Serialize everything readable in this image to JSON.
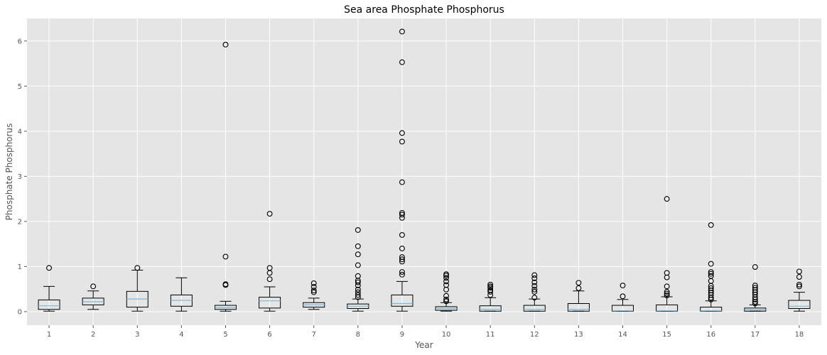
{
  "chart_data": {
    "type": "box",
    "title": "Sea area Phosphate Phosphorus",
    "xlabel": "Year",
    "ylabel": "Phosphate Phosphorus",
    "ylim": [
      -0.3,
      6.5
    ],
    "yticks": [
      0,
      1,
      2,
      3,
      4,
      5,
      6
    ],
    "grid": true,
    "background_color": "#E5E5E5",
    "grid_color": "#FFFFFF",
    "box_edge_color": "#000000",
    "median_color": "#7AB8D8",
    "categories": [
      "1",
      "2",
      "3",
      "4",
      "5",
      "6",
      "7",
      "8",
      "9",
      "10",
      "11",
      "12",
      "13",
      "14",
      "15",
      "16",
      "17",
      "18"
    ],
    "boxes": [
      {
        "category": "1",
        "whislo": 0.01,
        "q1": 0.05,
        "median": 0.13,
        "q3": 0.26,
        "whishi": 0.56,
        "fliers": [
          0.97
        ]
      },
      {
        "category": "2",
        "whislo": 0.05,
        "q1": 0.15,
        "median": 0.22,
        "q3": 0.3,
        "whishi": 0.46,
        "fliers": [
          0.56
        ]
      },
      {
        "category": "3",
        "whislo": 0.01,
        "q1": 0.1,
        "median": 0.28,
        "q3": 0.45,
        "whishi": 0.92,
        "fliers": [
          0.97
        ]
      },
      {
        "category": "4",
        "whislo": 0.01,
        "q1": 0.12,
        "median": 0.25,
        "q3": 0.37,
        "whishi": 0.75,
        "fliers": []
      },
      {
        "category": "5",
        "whislo": 0.01,
        "q1": 0.05,
        "median": 0.09,
        "q3": 0.14,
        "whishi": 0.23,
        "fliers": [
          0.59,
          0.61,
          1.22,
          5.92
        ]
      },
      {
        "category": "6",
        "whislo": 0.01,
        "q1": 0.08,
        "median": 0.24,
        "q3": 0.32,
        "whishi": 0.55,
        "fliers": [
          0.72,
          0.86,
          0.97,
          2.17
        ]
      },
      {
        "category": "7",
        "whislo": 0.05,
        "q1": 0.1,
        "median": 0.15,
        "q3": 0.2,
        "whishi": 0.3,
        "fliers": [
          0.43,
          0.47,
          0.55,
          0.63
        ]
      },
      {
        "category": "8",
        "whislo": 0.01,
        "q1": 0.07,
        "median": 0.12,
        "q3": 0.17,
        "whishi": 0.28,
        "fliers": [
          0.32,
          0.37,
          0.43,
          0.49,
          0.58,
          0.65,
          0.69,
          0.79,
          1.03,
          1.27,
          1.45,
          1.81
        ]
      },
      {
        "category": "9",
        "whislo": 0.01,
        "q1": 0.12,
        "median": 0.18,
        "q3": 0.37,
        "whishi": 0.67,
        "fliers": [
          0.82,
          0.88,
          1.11,
          1.16,
          1.21,
          1.4,
          1.7,
          2.08,
          2.15,
          2.19,
          2.87,
          3.77,
          3.96,
          5.53,
          6.21
        ]
      },
      {
        "category": "10",
        "whislo": 0.01,
        "q1": 0.03,
        "median": 0.07,
        "q3": 0.11,
        "whishi": 0.2,
        "fliers": [
          0.23,
          0.27,
          0.35,
          0.49,
          0.59,
          0.67,
          0.75,
          0.8,
          0.83
        ]
      },
      {
        "category": "11",
        "whislo": 0.01,
        "q1": 0.01,
        "median": 0.05,
        "q3": 0.13,
        "whishi": 0.31,
        "fliers": [
          0.37,
          0.44,
          0.48,
          0.53,
          0.56,
          0.6
        ]
      },
      {
        "category": "12",
        "whislo": 0.01,
        "q1": 0.01,
        "median": 0.05,
        "q3": 0.14,
        "whishi": 0.28,
        "fliers": [
          0.31,
          0.44,
          0.49,
          0.57,
          0.65,
          0.74,
          0.81
        ]
      },
      {
        "category": "13",
        "whislo": 0.01,
        "q1": 0.01,
        "median": 0.05,
        "q3": 0.18,
        "whishi": 0.46,
        "fliers": [
          0.52,
          0.64
        ]
      },
      {
        "category": "14",
        "whislo": 0.01,
        "q1": 0.01,
        "median": 0.02,
        "q3": 0.14,
        "whishi": 0.27,
        "fliers": [
          0.34,
          0.58
        ]
      },
      {
        "category": "15",
        "whislo": 0.01,
        "q1": 0.01,
        "median": 0.02,
        "q3": 0.15,
        "whishi": 0.33,
        "fliers": [
          0.36,
          0.4,
          0.44,
          0.56,
          0.76,
          0.86,
          2.5
        ]
      },
      {
        "category": "16",
        "whislo": 0.01,
        "q1": 0.01,
        "median": 0.02,
        "q3": 0.1,
        "whishi": 0.24,
        "fliers": [
          0.27,
          0.31,
          0.37,
          0.42,
          0.47,
          0.52,
          0.57,
          0.68,
          0.79,
          0.84,
          0.88,
          1.06,
          1.92
        ]
      },
      {
        "category": "17",
        "whislo": 0.01,
        "q1": 0.01,
        "median": 0.04,
        "q3": 0.08,
        "whishi": 0.15,
        "fliers": [
          0.18,
          0.22,
          0.27,
          0.32,
          0.38,
          0.43,
          0.48,
          0.53,
          0.58,
          0.99
        ]
      },
      {
        "category": "18",
        "whislo": 0.01,
        "q1": 0.07,
        "median": 0.12,
        "q3": 0.25,
        "whishi": 0.43,
        "fliers": [
          0.56,
          0.6,
          0.77,
          0.89
        ]
      }
    ]
  }
}
